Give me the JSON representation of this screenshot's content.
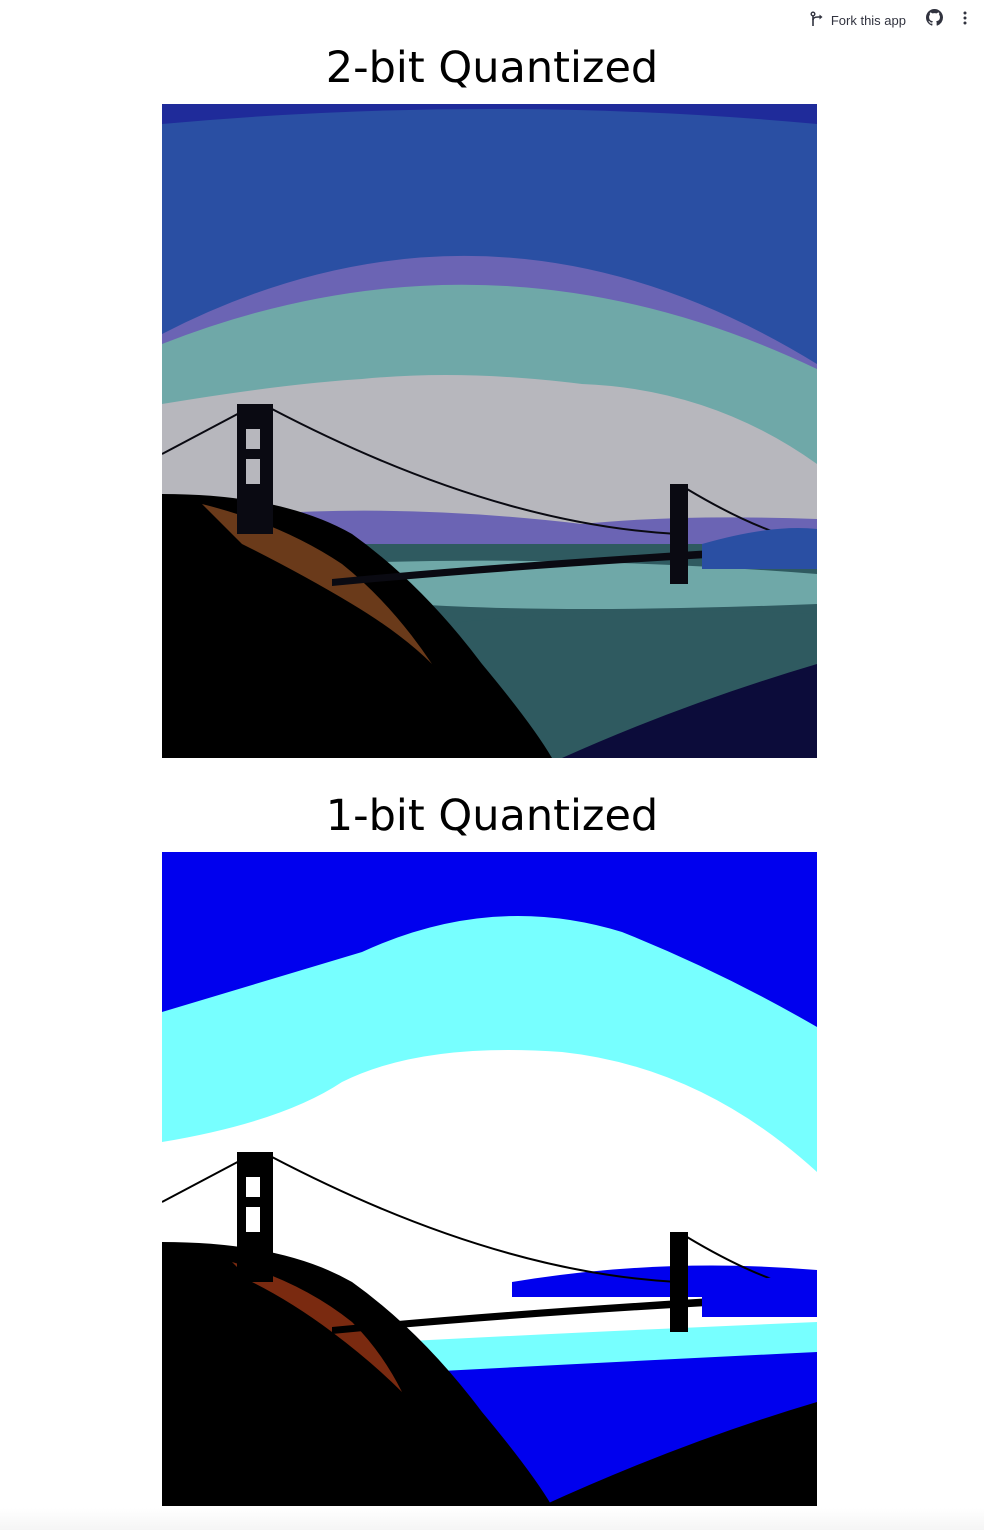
{
  "toolbar": {
    "fork_label": "Fork this app",
    "fork_icon": "fork-icon",
    "github_icon": "github-icon",
    "menu_icon": "more-vertical-icon"
  },
  "figures": [
    {
      "title": "2-bit Quantized",
      "palette": {
        "sky_top": "#1f2b9a",
        "sky_mid": "#2a4fa3",
        "haze": "#6b64b4",
        "teal": "#6fa8a8",
        "cloud": "#b7b7bd",
        "water": "#2f5a60",
        "water_light": "#6fa8a8",
        "hill": "#000000",
        "hill_accent": "#6a3a1a",
        "bridge": "#0a0a12"
      }
    },
    {
      "title": "1-bit Quantized",
      "palette": {
        "sky_top": "#0000ee",
        "teal": "#77ffff",
        "cloud": "#ffffff",
        "water": "#0000ee",
        "water_light": "#77ffff",
        "hill": "#000000",
        "hill_accent": "#7a2a10",
        "bridge": "#000000"
      }
    }
  ]
}
